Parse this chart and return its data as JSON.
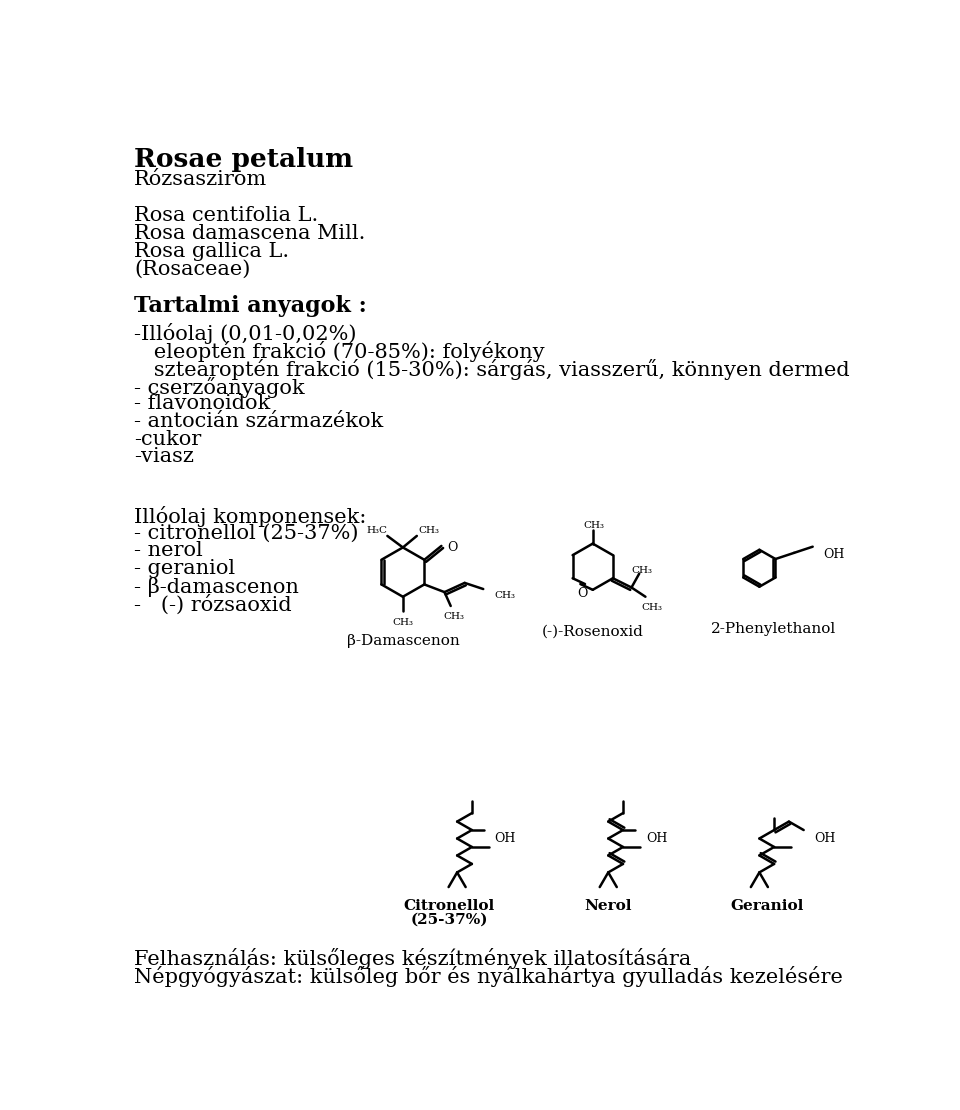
{
  "background_color": "#ffffff",
  "title": "Rosae petalum",
  "subtitle": "Rózsaszirom",
  "species": [
    "Rosa centifolia L.",
    "Rosa damascena Mill.",
    "Rosa gallica L.",
    "(Rosaceae)"
  ],
  "section1_title": "Tartalmi anyagok :",
  "line1": "-Illóolaj (0,01-0,02%)",
  "line2": "   eleoptén frakció (70-85%): folyékony",
  "line3": "   sztearoptén frakció (15-30%): sárgás, viasszerű, könnyen dermed",
  "line4": "- cserzőanyagok",
  "line5": "- flavonoidok",
  "line6": "- antocián származékok",
  "line7": "-cukor",
  "line8": "-viasz",
  "section2_title": "Illóolaj komponensek:",
  "comp1": "- citronellol (25-37%)",
  "comp2": "- nerol",
  "comp3": "- geraniol",
  "comp4": "- β-damascenon",
  "comp5": "-   (-) rózsaoxid",
  "label1": "β-Damascenon",
  "label2": "(-)-Rosenoxid",
  "label3": "2-Phenylethanol",
  "label4a": "Citronellol",
  "label4b": "(25-37%)",
  "label5": "Nerol",
  "label6": "Geraniol",
  "footer1": "Felhasználás: külsőleges készítmények illatosítására",
  "footer2": "Népgyógyászat: külsőleg bőr és nyálkahártya gyulladás kezelésére"
}
